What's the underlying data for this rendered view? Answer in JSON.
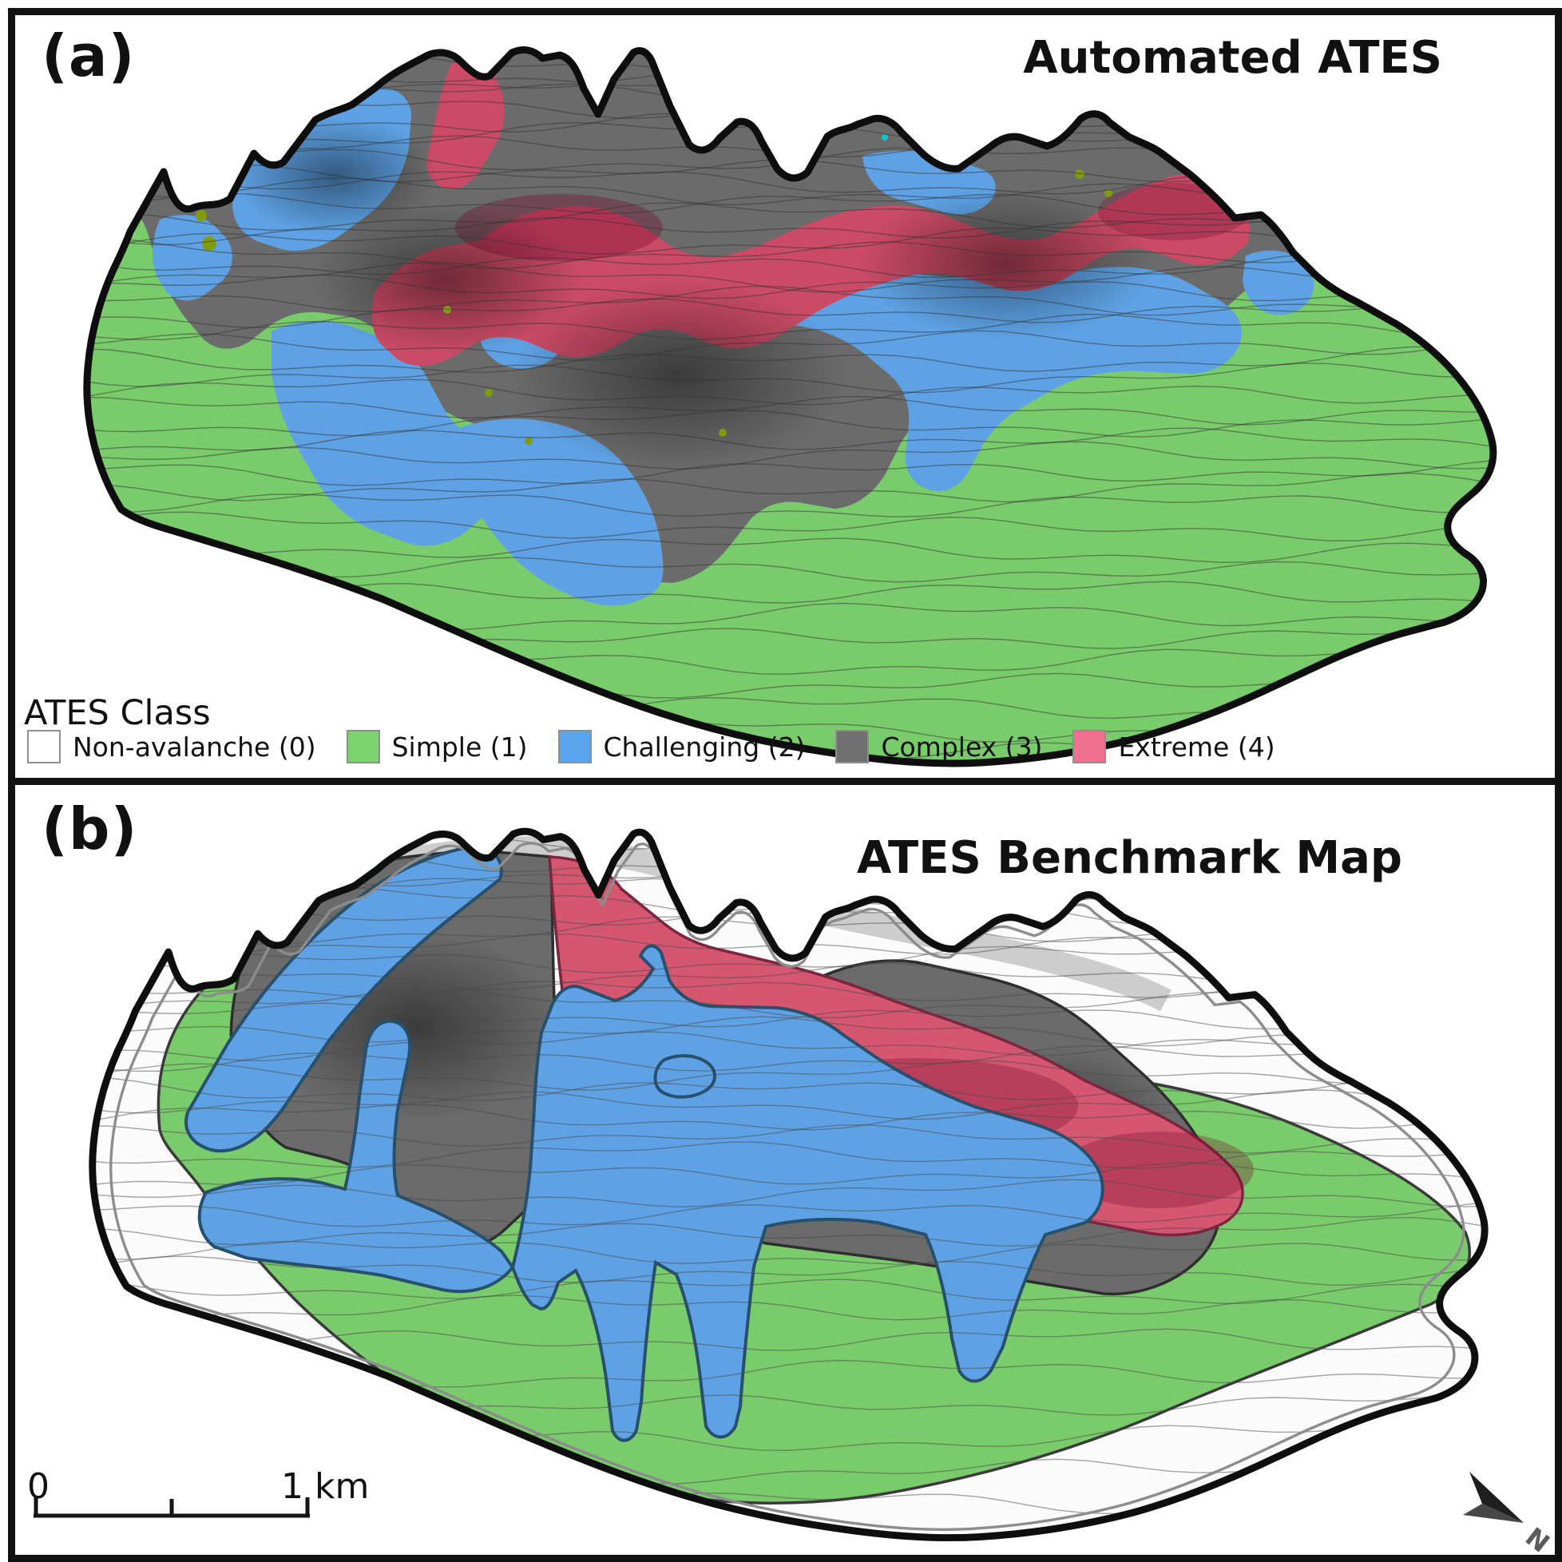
{
  "panel_a": {
    "label": "(a)",
    "title": "Automated ATES"
  },
  "panel_b": {
    "label": "(b)",
    "title": "ATES Benchmark Map"
  },
  "legend": {
    "heading": "ATES Class",
    "items": [
      {
        "label": "Non-avalanche (0)",
        "color": "#ffffff"
      },
      {
        "label": "Simple (1)",
        "color": "#7bd36f"
      },
      {
        "label": "Challenging (2)",
        "color": "#5aa6ec"
      },
      {
        "label": "Complex (3)",
        "color": "#707070"
      },
      {
        "label": "Extreme (4)",
        "color": "#f0718f"
      }
    ]
  },
  "map_colors": {
    "simple": "#79cb6b",
    "challenging": "#5ea2e5",
    "complex": "#6b6b6b",
    "extreme": "#cb4b67",
    "extreme_benchmark": "#d5566f",
    "non_avalanche": "#fbfbfb",
    "outline": "#111111"
  },
  "scale_bar": {
    "start_label": "0",
    "end_label": "1 km"
  },
  "north_arrow_label": "N"
}
